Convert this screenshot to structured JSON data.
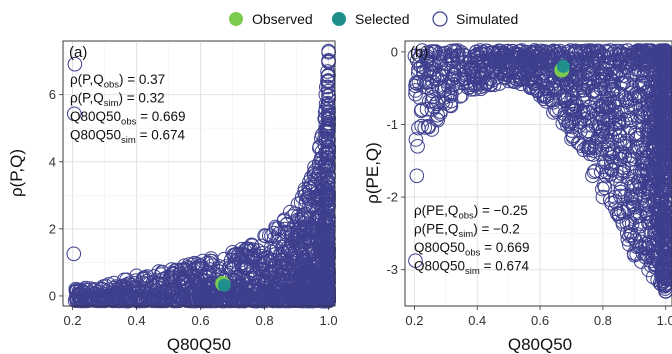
{
  "legend": {
    "observed": {
      "label": "Observed",
      "color": "#7CCB4F"
    },
    "selected": {
      "label": "Selected",
      "color": "#1E8F8A"
    },
    "simulated": {
      "label": "Simulated",
      "color": "#3D3F8E"
    }
  },
  "panels": [
    {
      "tag": "(a)",
      "xlabel": "Q80Q50",
      "ylabel": "ρ(P,Q)",
      "xticks": [
        "0.2",
        "0.4",
        "0.6",
        "0.8",
        "1.0"
      ],
      "yticks": [
        "0",
        "2",
        "4",
        "6"
      ],
      "anno": [
        {
          "pre": "ρ(P,Q",
          "sub": "obs",
          "post": ") = 0.37"
        },
        {
          "pre": "ρ(P,Q",
          "sub": "sim",
          "post": ") = 0.32"
        },
        {
          "pre": "Q80Q50",
          "sub": "obs",
          "post": " = 0.669"
        },
        {
          "pre": "Q80Q50",
          "sub": "sim",
          "post": " = 0.674"
        }
      ]
    },
    {
      "tag": "(b)",
      "xlabel": "Q80Q50",
      "ylabel": "ρ(PE,Q)",
      "xticks": [
        "0.2",
        "0.4",
        "0.6",
        "0.8",
        "1.0"
      ],
      "yticks": [
        "0",
        "-1",
        "-2",
        "-3"
      ],
      "anno": [
        {
          "pre": "ρ(PE,Q",
          "sub": "obs",
          "post": ") = −0.25"
        },
        {
          "pre": "ρ(PE,Q",
          "sub": "sim",
          "post": ") = −0.2"
        },
        {
          "pre": "Q80Q50",
          "sub": "obs",
          "post": " = 0.669"
        },
        {
          "pre": "Q80Q50",
          "sub": "sim",
          "post": " = 0.674"
        }
      ]
    }
  ],
  "chart_data": [
    {
      "type": "scatter",
      "xlabel": "Q80Q50",
      "ylabel": "ρ(P,Q)",
      "xlim": [
        0.17,
        1.02
      ],
      "ylim": [
        -0.3,
        7.6
      ],
      "grid": true,
      "legend_position": "top",
      "series": [
        {
          "name": "Simulated",
          "envelope": [
            [
              0.21,
              0.2
            ],
            [
              0.4,
              0.6
            ],
            [
              0.55,
              0.9
            ],
            [
              0.7,
              1.3
            ],
            [
              0.8,
              1.8
            ],
            [
              0.88,
              2.5
            ],
            [
              0.94,
              3.4
            ],
            [
              0.98,
              4.8
            ],
            [
              1.0,
              7.3
            ]
          ]
        },
        {
          "name": "Observed",
          "points": [
            [
              0.669,
              0.37
            ]
          ]
        },
        {
          "name": "Selected",
          "points": [
            [
              0.674,
              0.32
            ]
          ]
        }
      ]
    },
    {
      "type": "scatter",
      "xlabel": "Q80Q50",
      "ylabel": "ρ(PE,Q)",
      "xlim": [
        0.17,
        1.02
      ],
      "ylim": [
        -3.5,
        0.15
      ],
      "grid": true,
      "legend_position": "top",
      "series": [
        {
          "name": "Simulated",
          "envelope": [
            [
              0.21,
              -1.3
            ],
            [
              0.35,
              -0.6
            ],
            [
              0.5,
              -0.4
            ],
            [
              0.6,
              -0.6
            ],
            [
              0.7,
              -1.2
            ],
            [
              0.8,
              -2.0
            ],
            [
              0.9,
              -2.8
            ],
            [
              0.96,
              -3.1
            ],
            [
              1.0,
              -3.3
            ]
          ]
        },
        {
          "name": "Observed",
          "points": [
            [
              0.669,
              -0.25
            ]
          ]
        },
        {
          "name": "Selected",
          "points": [
            [
              0.674,
              -0.2
            ]
          ]
        }
      ]
    }
  ]
}
